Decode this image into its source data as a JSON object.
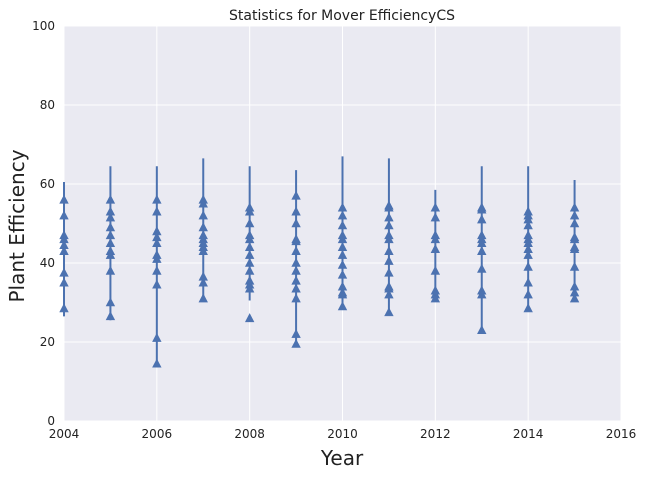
{
  "chart_data": {
    "type": "scatter",
    "title": "Statistics for Mover EfficiencyCS",
    "xlabel": "Year",
    "ylabel": "Plant Efficiency",
    "xlim": [
      2004,
      2016
    ],
    "ylim": [
      0,
      100
    ],
    "xticks": [
      2004,
      2006,
      2008,
      2010,
      2012,
      2014,
      2016
    ],
    "yticks": [
      0,
      20,
      40,
      60,
      80,
      100
    ],
    "grid": true,
    "marker": "triangle-up",
    "colors": {
      "series": "#4c72b0",
      "plot_background": "#eaeaf2",
      "grid": "#ffffff"
    },
    "series": [
      {
        "values_by_year": [
          {
            "x": 2004,
            "range": [
              26.5,
              60.5
            ],
            "points": [
              56,
              52,
              47,
              46,
              44.5,
              43,
              37.5,
              35,
              28.5
            ]
          },
          {
            "x": 2005,
            "range": [
              25.5,
              64.5
            ],
            "points": [
              56,
              53,
              51.5,
              49,
              47,
              45,
              43,
              42,
              38,
              30,
              26.5
            ]
          },
          {
            "x": 2006,
            "range": [
              14.5,
              64.5
            ],
            "points": [
              56,
              53,
              48,
              46.5,
              45,
              42,
              41,
              38,
              34.5,
              21,
              14.5
            ]
          },
          {
            "x": 2007,
            "range": [
              30.5,
              66.5
            ],
            "points": [
              56,
              55,
              52,
              49,
              47,
              46,
              45,
              44,
              43,
              36.5,
              35,
              31
            ]
          },
          {
            "x": 2008,
            "range": [
              30.5,
              64.5
            ],
            "points": [
              54,
              53,
              50,
              47,
              46,
              44,
              42,
              40,
              38,
              35.5,
              34.5,
              33.5,
              26
            ]
          },
          {
            "x": 2009,
            "range": [
              19.5,
              63.5
            ],
            "points": [
              57,
              53,
              50,
              46,
              45.5,
              43,
              40,
              38,
              35.5,
              33.5,
              31,
              22,
              19.5
            ]
          },
          {
            "x": 2010,
            "range": [
              28.5,
              67
            ],
            "points": [
              54,
              52,
              49.5,
              47,
              46,
              44,
              42,
              39.5,
              37,
              34,
              32.5,
              32,
              29
            ]
          },
          {
            "x": 2011,
            "range": [
              27,
              66.5
            ],
            "points": [
              54.5,
              54,
              51.5,
              49.5,
              47,
              46,
              43,
              40.5,
              37.5,
              34,
              33.5,
              32,
              27.5
            ]
          },
          {
            "x": 2012,
            "range": [
              30.5,
              58.5
            ],
            "points": [
              54,
              51.5,
              47,
              46,
              43.5,
              38,
              33,
              32,
              31
            ]
          },
          {
            "x": 2013,
            "range": [
              22.5,
              64.5
            ],
            "points": [
              54,
              53.5,
              51,
              47,
              46,
              45,
              43,
              38.5,
              33,
              32,
              23
            ]
          },
          {
            "x": 2014,
            "range": [
              28,
              64.5
            ],
            "points": [
              53,
              52,
              51,
              49.5,
              47,
              46,
              45,
              43.5,
              42,
              39,
              35,
              32,
              28.5
            ]
          },
          {
            "x": 2015,
            "range": [
              30.5,
              61
            ],
            "points": [
              54,
              52,
              50,
              46.5,
              46,
              44,
              43.5,
              39,
              34,
              32.5,
              31
            ]
          }
        ]
      }
    ]
  }
}
